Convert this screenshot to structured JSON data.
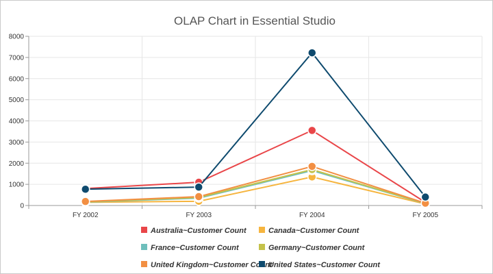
{
  "chart_data": {
    "type": "line",
    "title": "OLAP Chart in Essential Studio",
    "categories": [
      "FY 2002",
      "FY 2003",
      "FY 2004",
      "FY 2005"
    ],
    "ylim": [
      0,
      8000
    ],
    "yticks": [
      0,
      1000,
      2000,
      3000,
      4000,
      5000,
      6000,
      7000,
      8000
    ],
    "grid": true,
    "legend_position": "bottom",
    "series": [
      {
        "name": "Australia~Customer Count",
        "color": "#e94649",
        "values": [
          800,
          1100,
          3550,
          150
        ]
      },
      {
        "name": "Canada~Customer Count",
        "color": "#f6b53f",
        "values": [
          150,
          200,
          1350,
          70
        ]
      },
      {
        "name": "France~Customer Count",
        "color": "#6fbfbc",
        "values": [
          160,
          350,
          1650,
          90
        ]
      },
      {
        "name": "Germany~Customer Count",
        "color": "#c4c24a",
        "values": [
          170,
          380,
          1700,
          100
        ]
      },
      {
        "name": "United Kingdom~Customer Count",
        "color": "#f28f43",
        "values": [
          190,
          420,
          1850,
          110
        ]
      },
      {
        "name": "United States~Customer Count",
        "color": "#0e4a6e",
        "values": [
          770,
          870,
          7220,
          400
        ]
      }
    ]
  }
}
